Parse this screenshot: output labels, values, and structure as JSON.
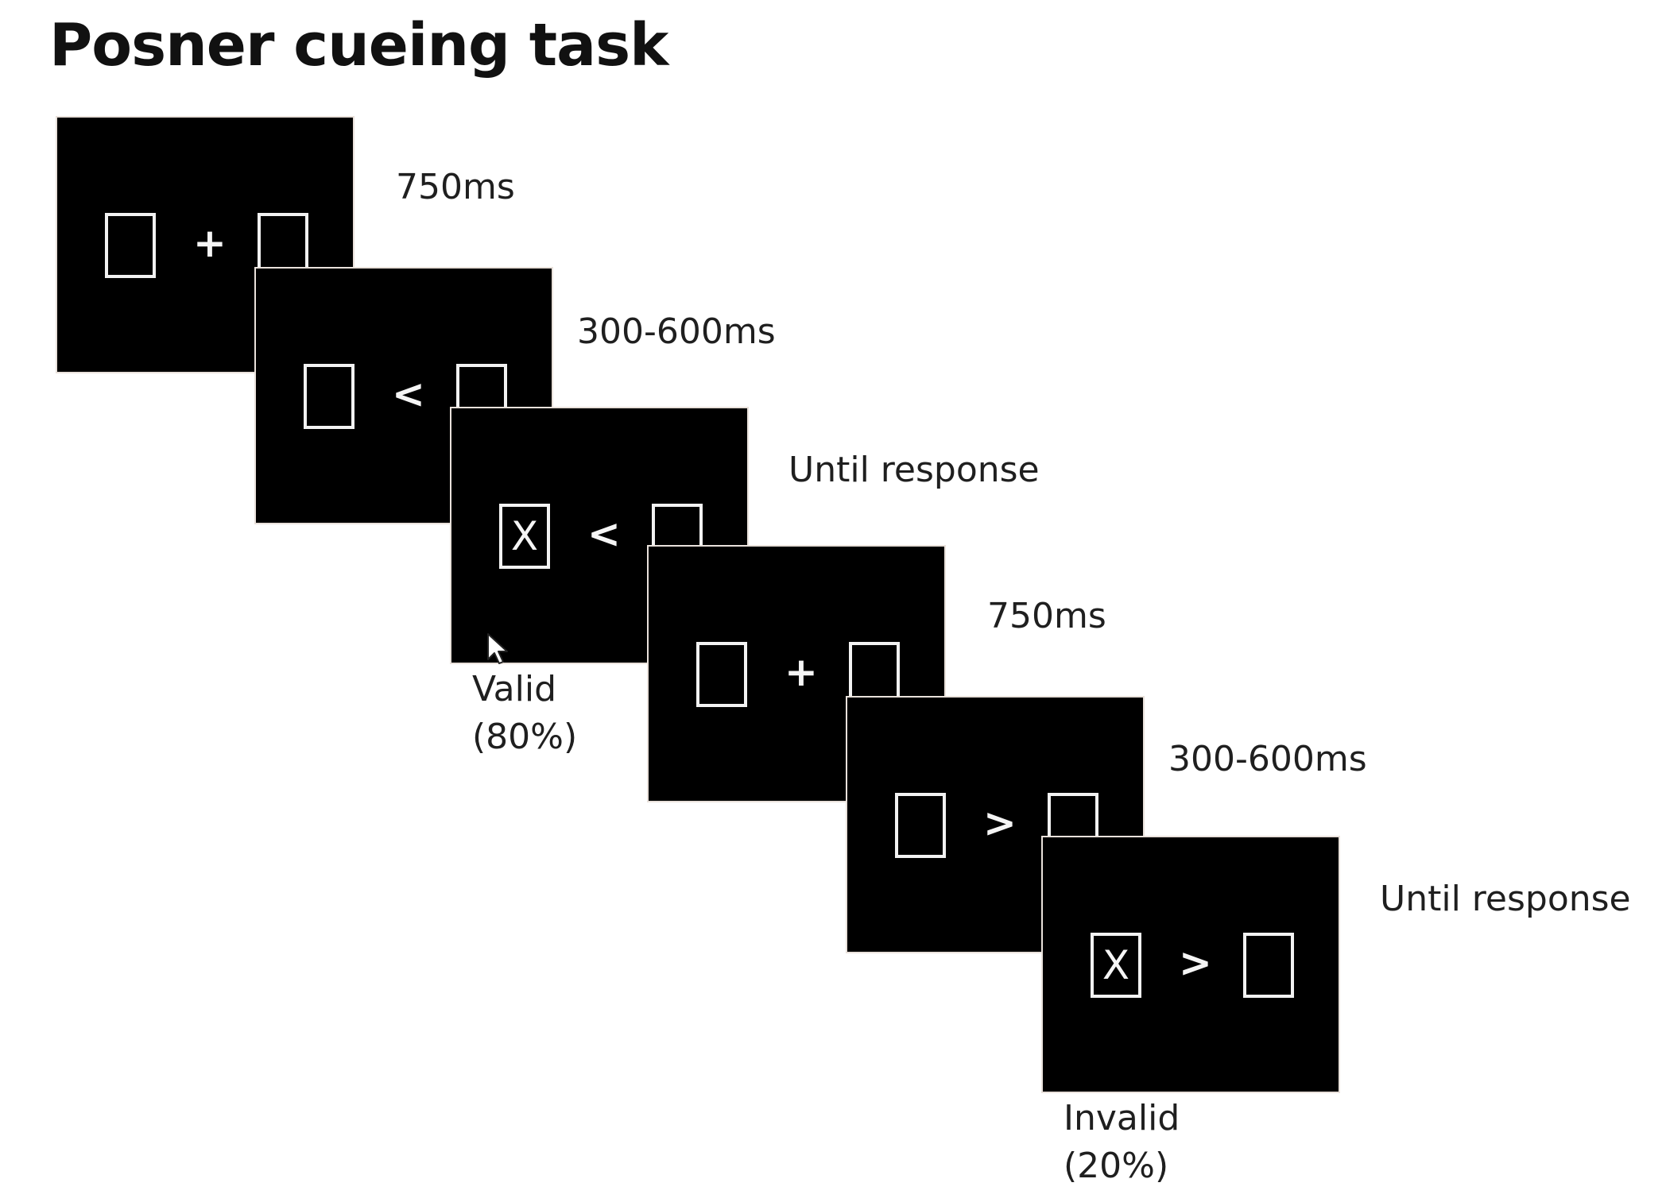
{
  "title": "Posner cueing task",
  "panels": [
    {
      "cue": "+",
      "left_target": "",
      "right_target": "",
      "duration": "750ms"
    },
    {
      "cue": "<",
      "left_target": "",
      "right_target": "",
      "duration": "300-600ms"
    },
    {
      "cue": "<",
      "left_target": "X",
      "right_target": "",
      "duration": "Until response"
    },
    {
      "cue": "+",
      "left_target": "",
      "right_target": "",
      "duration": "750ms"
    },
    {
      "cue": ">",
      "left_target": "",
      "right_target": "",
      "duration": "300-600ms"
    },
    {
      "cue": ">",
      "left_target": "X",
      "right_target": "",
      "duration": "Until response"
    }
  ],
  "conditions": {
    "valid": {
      "name": "Valid",
      "percent": "(80%)"
    },
    "invalid": {
      "name": "Invalid",
      "percent": "(20%)"
    }
  },
  "colors": {
    "panel_background": "#000000",
    "stimulus": "#f2f2f2",
    "panel_edge": "#e9e1db",
    "text": "#1f1f1f"
  },
  "icons": {
    "pointer": "mouse-cursor-icon"
  }
}
